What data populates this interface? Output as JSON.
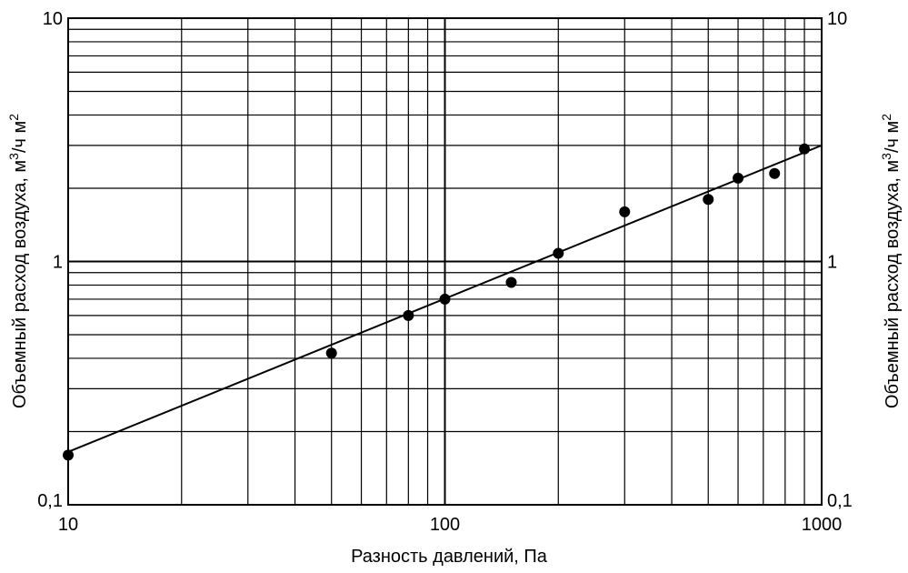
{
  "chart_data": {
    "type": "scatter",
    "title": "",
    "xlabel": "Разность давлений, Па",
    "ylabel_left": "Объемный расход воздуха, м³/ч м²",
    "ylabel_right": "Объемный расход воздуха, м³/ч м²",
    "x_scale": "log",
    "y_scale": "log",
    "xlim": [
      10,
      1000
    ],
    "ylim": [
      0.1,
      10
    ],
    "x_ticks": [
      {
        "value": 10,
        "label": "10"
      },
      {
        "value": 100,
        "label": "100"
      },
      {
        "value": 1000,
        "label": "1000"
      }
    ],
    "y_ticks": [
      {
        "value": 0.1,
        "label": "0,1"
      },
      {
        "value": 1,
        "label": "1"
      },
      {
        "value": 10,
        "label": "10"
      }
    ],
    "grid": true,
    "points": [
      {
        "x": 10,
        "y": 0.16
      },
      {
        "x": 50,
        "y": 0.42
      },
      {
        "x": 80,
        "y": 0.6
      },
      {
        "x": 100,
        "y": 0.7
      },
      {
        "x": 150,
        "y": 0.82
      },
      {
        "x": 200,
        "y": 1.08
      },
      {
        "x": 300,
        "y": 1.6
      },
      {
        "x": 500,
        "y": 1.8
      },
      {
        "x": 600,
        "y": 2.2
      },
      {
        "x": 750,
        "y": 2.3
      },
      {
        "x": 900,
        "y": 2.9
      }
    ],
    "fit_line": {
      "x": [
        10,
        1000
      ],
      "y": [
        0.165,
        3.0
      ]
    }
  }
}
